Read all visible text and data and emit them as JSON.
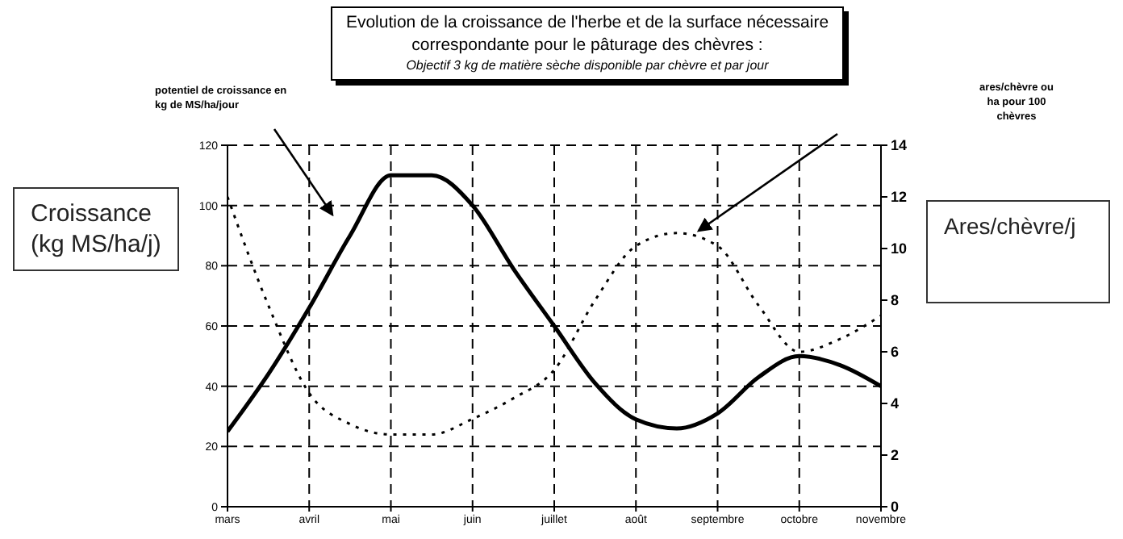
{
  "chart_data": {
    "type": "line",
    "title": "Evolution de la croissance de l'herbe et de la surface nécessaire correspondante pour le pâturage des chèvres :",
    "subtitle": "Objectif 3 kg de matière sèche disponible par chèvre et par jour",
    "ylabel": "Croissance (kg MS/ha/j)",
    "y2label": "Ares/chèvre/j",
    "annotations": [
      "potentiel de croissance en kg de MS/ha/jour",
      "ares/chèvre ou ha pour 100 chèvres"
    ],
    "categories": [
      "mars",
      null,
      "avril",
      null,
      "mai",
      null,
      "juin",
      null,
      "juillet",
      null,
      "août",
      null,
      "septembre",
      null,
      "octobre",
      null,
      "novembre"
    ],
    "ylim": [
      0,
      120
    ],
    "yticks": [
      0,
      20,
      40,
      60,
      80,
      100,
      120
    ],
    "y2lim": [
      0,
      14
    ],
    "y2ticks": [
      0,
      2,
      4,
      6,
      8,
      10,
      12,
      14
    ],
    "grid": true,
    "legend": false,
    "marker": "none",
    "series": [
      {
        "color": "#000000",
        "line_style": "solid",
        "values": [
          25,
          44,
          66,
          90,
          110,
          110,
          100,
          79,
          60,
          41,
          29,
          26,
          31,
          43,
          50,
          47,
          40
        ]
      },
      {
        "color": "#000000",
        "line_style": "dotted",
        "axis": "y2",
        "values": [
          12,
          7.8,
          4.4,
          3.2,
          2.8,
          2.8,
          3.4,
          4.2,
          5.3,
          8,
          10.1,
          10.6,
          10.1,
          7.8,
          6,
          6.5,
          7.4
        ]
      }
    ]
  }
}
